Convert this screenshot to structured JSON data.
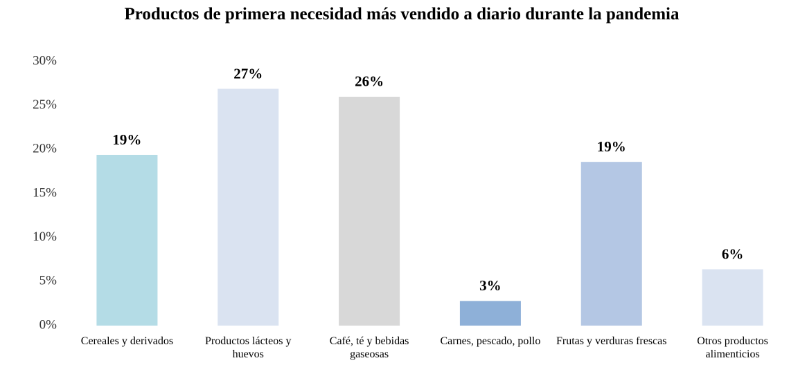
{
  "chart_data": {
    "type": "bar",
    "title": "Productos de primera necesidad más vendido a diario durante la pandemia",
    "categories": [
      "Cereales y derivados",
      "Productos lácteos y huevos",
      "Café, té y bebidas gaseosas",
      "Carnes, pescado, pollo",
      "Frutas y verduras frescas",
      "Otros productos alimenticios"
    ],
    "values": [
      19.4,
      26.9,
      26,
      2.8,
      18.6,
      6.4
    ],
    "value_labels": [
      "19%",
      "27%",
      "26%",
      "3%",
      "19%",
      "6%"
    ],
    "colors": [
      "#b4dce6",
      "#dae3f1",
      "#d8d8d8",
      "#8eb0d8",
      "#b4c7e4",
      "#dae3f1"
    ],
    "ylim": [
      0,
      30
    ],
    "yticks": [
      {
        "value": 0,
        "label": "0%"
      },
      {
        "value": 5,
        "label": "5%"
      },
      {
        "value": 10,
        "label": "10%"
      },
      {
        "value": 15,
        "label": "15%"
      },
      {
        "value": 20,
        "label": "20%"
      },
      {
        "value": 25,
        "label": "25%"
      },
      {
        "value": 30,
        "label": "30%"
      }
    ],
    "grid": false
  }
}
